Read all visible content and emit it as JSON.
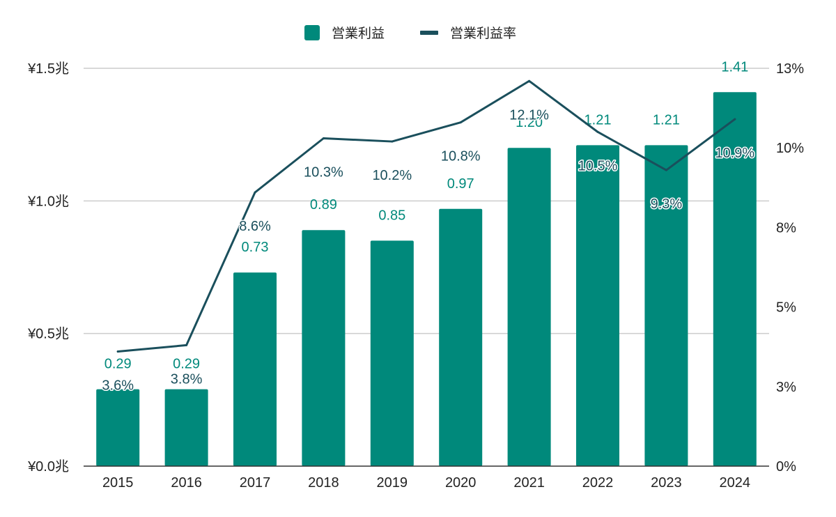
{
  "chart_data": {
    "type": "bar",
    "categories": [
      "2015",
      "2016",
      "2017",
      "2018",
      "2019",
      "2020",
      "2021",
      "2022",
      "2023",
      "2024"
    ],
    "series": [
      {
        "name": "営業利益",
        "kind": "bar",
        "axis": "left",
        "color": "#00897b",
        "values": [
          0.29,
          0.29,
          0.73,
          0.89,
          0.85,
          0.97,
          1.2,
          1.21,
          1.21,
          1.41
        ],
        "labels": [
          "0.29",
          "0.29",
          "0.73",
          "0.89",
          "0.85",
          "0.97",
          "1.20",
          "1.21",
          "1.21",
          "1.41"
        ]
      },
      {
        "name": "営業利益率",
        "kind": "line",
        "axis": "right",
        "color": "#1a4f5c",
        "values": [
          3.6,
          3.8,
          8.6,
          10.3,
          10.2,
          10.8,
          12.1,
          10.5,
          9.3,
          10.9
        ],
        "labels": [
          "3.6%",
          "3.8%",
          "8.6%",
          "10.3%",
          "10.2%",
          "10.8%",
          "12.1%",
          "10.5%",
          "9.3%",
          "10.9%"
        ]
      }
    ],
    "yaxis_left": {
      "range": [
        0,
        1.5
      ],
      "ticks": [
        "¥0.0兆",
        "¥0.5兆",
        "¥1.0兆",
        "¥1.5兆"
      ]
    },
    "yaxis_right": {
      "range": [
        0,
        12.5
      ],
      "ticks": [
        "0%",
        "3%",
        "5%",
        "8%",
        "10%",
        "13%"
      ]
    },
    "grid": true,
    "legend_position": "top-center"
  }
}
